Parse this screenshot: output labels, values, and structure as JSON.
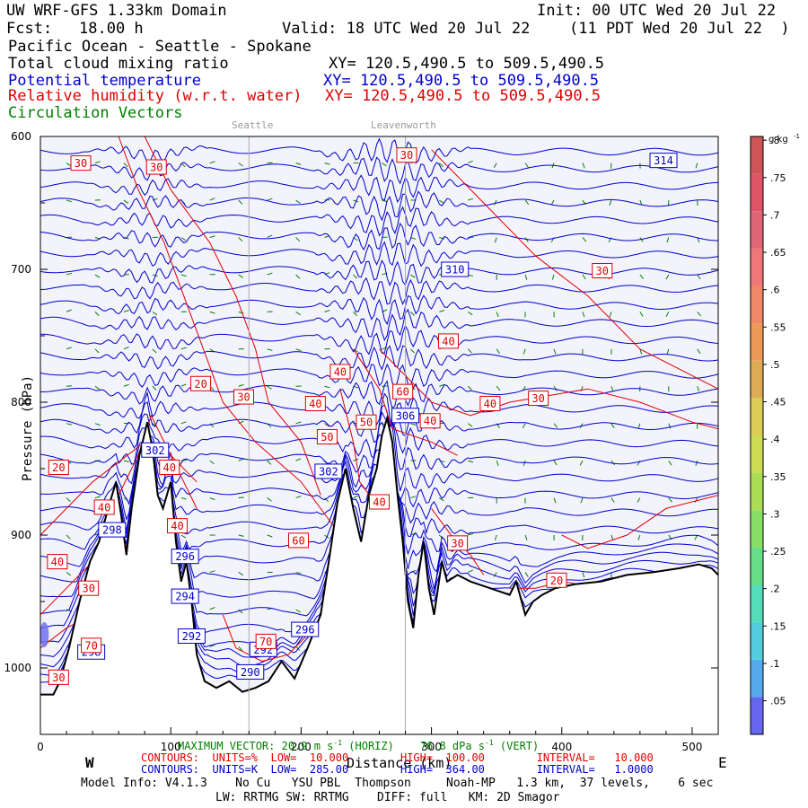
{
  "header": {
    "model": "UW WRF-GFS 1.33km Domain",
    "init": "Init: 00 UTC Wed 20 Jul 22",
    "fcst_label": "Fcst:",
    "fcst_value": "18.00 h",
    "valid": "Valid: 18 UTC Wed 20 Jul 22",
    "valid_local": "(11 PDT Wed 20 Jul 22  )",
    "region": "Pacific Ocean - Seattle - Spokane"
  },
  "fields": [
    {
      "name": "Total cloud mixing ratio",
      "xy": "XY= 120.5,490.5 to 509.5,490.5",
      "color": "#000000"
    },
    {
      "name": "Potential temperature",
      "xy": "XY= 120.5,490.5 to 509.5,490.5",
      "color": "#0000cc"
    },
    {
      "name": "Relative humidity (w.r.t. water)",
      "xy": "XY= 120.5,490.5 to 509.5,490.5",
      "color": "#e00000"
    },
    {
      "name": "Circulation Vectors",
      "xy": "",
      "color": "#008000"
    }
  ],
  "locations": [
    {
      "name": "Seattle",
      "x_km": 160
    },
    {
      "name": "Leavenworth",
      "x_km": 280
    }
  ],
  "chart_data": {
    "type": "line",
    "xlabel": "Distance (km)",
    "ylabel": "Pressure (hPa)",
    "xlim": [
      0,
      520
    ],
    "ylim": [
      1050,
      600
    ],
    "x_ticks": [
      0,
      100,
      200,
      300,
      400,
      500
    ],
    "y_ticks": [
      600,
      700,
      800,
      900,
      1000
    ],
    "y_tick_labels": [
      "600",
      "700",
      "800",
      "900",
      "1000"
    ],
    "x_dir_left": "W",
    "x_dir_right": "E",
    "terrain": [
      [
        0,
        1020
      ],
      [
        10,
        1020
      ],
      [
        15,
        1010
      ],
      [
        22,
        985
      ],
      [
        30,
        950
      ],
      [
        38,
        920
      ],
      [
        45,
        905
      ],
      [
        52,
        880
      ],
      [
        58,
        860
      ],
      [
        62,
        885
      ],
      [
        66,
        915
      ],
      [
        70,
        880
      ],
      [
        76,
        840
      ],
      [
        82,
        815
      ],
      [
        86,
        835
      ],
      [
        90,
        870
      ],
      [
        94,
        880
      ],
      [
        100,
        860
      ],
      [
        104,
        905
      ],
      [
        108,
        935
      ],
      [
        112,
        920
      ],
      [
        116,
        950
      ],
      [
        120,
        990
      ],
      [
        126,
        1010
      ],
      [
        135,
        1015
      ],
      [
        145,
        1010
      ],
      [
        155,
        1018
      ],
      [
        165,
        1015
      ],
      [
        175,
        1010
      ],
      [
        185,
        995
      ],
      [
        195,
        1008
      ],
      [
        205,
        985
      ],
      [
        215,
        960
      ],
      [
        222,
        915
      ],
      [
        228,
        875
      ],
      [
        234,
        850
      ],
      [
        240,
        880
      ],
      [
        246,
        905
      ],
      [
        252,
        870
      ],
      [
        258,
        850
      ],
      [
        262,
        825
      ],
      [
        266,
        812
      ],
      [
        270,
        830
      ],
      [
        274,
        870
      ],
      [
        278,
        905
      ],
      [
        282,
        950
      ],
      [
        286,
        970
      ],
      [
        290,
        930
      ],
      [
        294,
        905
      ],
      [
        298,
        940
      ],
      [
        302,
        960
      ],
      [
        308,
        920
      ],
      [
        312,
        935
      ],
      [
        320,
        930
      ],
      [
        330,
        935
      ],
      [
        345,
        940
      ],
      [
        360,
        945
      ],
      [
        365,
        935
      ],
      [
        372,
        960
      ],
      [
        378,
        950
      ],
      [
        385,
        945
      ],
      [
        395,
        940
      ],
      [
        410,
        937
      ],
      [
        430,
        935
      ],
      [
        450,
        930
      ],
      [
        470,
        928
      ],
      [
        490,
        925
      ],
      [
        505,
        922
      ],
      [
        515,
        925
      ],
      [
        520,
        930
      ]
    ],
    "theta_contours": {
      "units": "K",
      "low": "285.00",
      "high": "364.00",
      "interval": "1.0000"
    },
    "theta_labels": [
      {
        "label": "314",
        "x": 478,
        "p": 618
      },
      {
        "label": "310",
        "x": 318,
        "p": 700
      },
      {
        "label": "306",
        "x": 280,
        "p": 810
      },
      {
        "label": "302",
        "x": 88,
        "p": 836
      },
      {
        "label": "302",
        "x": 221,
        "p": 852
      },
      {
        "label": "298",
        "x": 55,
        "p": 896
      },
      {
        "label": "296",
        "x": 111,
        "p": 916
      },
      {
        "label": "294",
        "x": 111,
        "p": 946
      },
      {
        "label": "292",
        "x": 116,
        "p": 976
      },
      {
        "label": "296",
        "x": 203,
        "p": 971
      },
      {
        "label": "292",
        "x": 171,
        "p": 986
      },
      {
        "label": "290",
        "x": 161,
        "p": 1003
      },
      {
        "label": "298",
        "x": 39,
        "p": 988
      }
    ],
    "rh_contours": {
      "units": "%",
      "low": "10.000",
      "high": "100.00",
      "interval": "10.000"
    },
    "rh_labels": [
      {
        "label": "30",
        "x": 31,
        "p": 620
      },
      {
        "label": "30",
        "x": 89,
        "p": 623
      },
      {
        "label": "30",
        "x": 281,
        "p": 614
      },
      {
        "label": "30",
        "x": 431,
        "p": 701
      },
      {
        "label": "40",
        "x": 313,
        "p": 754
      },
      {
        "label": "40",
        "x": 230,
        "p": 777
      },
      {
        "label": "20",
        "x": 123,
        "p": 786
      },
      {
        "label": "30",
        "x": 156,
        "p": 796
      },
      {
        "label": "40",
        "x": 211,
        "p": 801
      },
      {
        "label": "60",
        "x": 278,
        "p": 792
      },
      {
        "label": "40",
        "x": 345,
        "p": 801
      },
      {
        "label": "30",
        "x": 382,
        "p": 797
      },
      {
        "label": "50",
        "x": 250,
        "p": 815
      },
      {
        "label": "40",
        "x": 299,
        "p": 814
      },
      {
        "label": "50",
        "x": 220,
        "p": 826
      },
      {
        "label": "20",
        "x": 14,
        "p": 849
      },
      {
        "label": "40",
        "x": 99,
        "p": 849
      },
      {
        "label": "40",
        "x": 49,
        "p": 879
      },
      {
        "label": "40",
        "x": 105,
        "p": 893
      },
      {
        "label": "40",
        "x": 260,
        "p": 875
      },
      {
        "label": "60",
        "x": 198,
        "p": 904
      },
      {
        "label": "30",
        "x": 320,
        "p": 906
      },
      {
        "label": "40",
        "x": 13,
        "p": 920
      },
      {
        "label": "30",
        "x": 37,
        "p": 940
      },
      {
        "label": "20",
        "x": 396,
        "p": 934
      },
      {
        "label": "70",
        "x": 173,
        "p": 980
      },
      {
        "label": "70",
        "x": 39,
        "p": 983
      },
      {
        "label": "30",
        "x": 14,
        "p": 1007
      }
    ],
    "colorbar": {
      "units_label": "g kg",
      "units_sup": "-1",
      "ticks": [
        ".05",
        ".1",
        ".15",
        ".2",
        ".25",
        ".3",
        ".35",
        ".4",
        ".45",
        ".5",
        ".55",
        ".6",
        ".65",
        ".7",
        ".75",
        ".8"
      ],
      "colors": [
        "#6666ee",
        "#55aaee",
        "#55ccdd",
        "#55ddbb",
        "#66dd88",
        "#88dd66",
        "#aadd55",
        "#ccdd55",
        "#ddcc55",
        "#ddaa55",
        "#ee9955",
        "#ee8866",
        "#ee7777",
        "#dd6677",
        "#dd5566",
        "#cc5555"
      ]
    }
  },
  "footer": {
    "max_vector_label": "MAXIMUM VECTOR:",
    "max_vector_horiz": "20.9 m s",
    "horiz_sup": "-1",
    "horiz_tag": "(HORIZ)",
    "max_vector_vert": "76.8 dPa s",
    "vert_sup": "-1",
    "vert_tag": "(VERT)",
    "rh_line": "CONTOURS:  UNITS=%  LOW=  10.000        HIGH=  100.00        INTERVAL=   10.000",
    "theta_line": "CONTOURS:  UNITS=K  LOW=  285.00        HIGH=  364.00        INTERVAL=   1.0000",
    "model_info": "Model Info: V4.1.3    No Cu   YSU PBL  Thompson     Noah-MP   1.3 km,  37 levels,    6 sec",
    "physics": "LW: RRTMG SW: RRTMG    DIFF: full   KM: 2D Smagor"
  },
  "colors": {
    "theta": "#0000cc",
    "rh": "#e00000",
    "vectors": "#008000",
    "terrain": "#000000",
    "background": "#f3f3fb"
  }
}
